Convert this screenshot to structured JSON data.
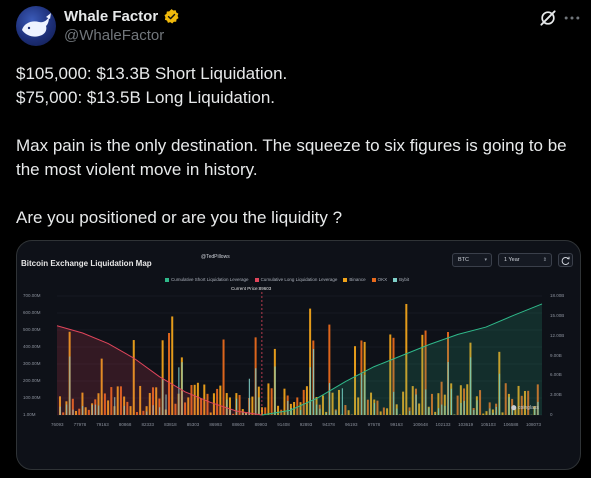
{
  "post": {
    "display_name": "Whale Factor",
    "handle": "@WhaleFactor",
    "lines": [
      "$105,000: $13.3B Short Liquidation.",
      "$75,000: $13.5B Long Liquidation.",
      "",
      "Max pain is the only destination. The squeeze to six figures is going to be the most violent move in history.",
      "",
      "Are you positioned or are you the liquidity ?"
    ]
  },
  "chart": {
    "title": "Bitcoin Exchange Liquidation Map",
    "watermark": "@TedPillows",
    "asset_select": "BTC",
    "range_select": "1 Year",
    "legend": [
      {
        "label": "Cumulative Short Liquidation Leverage",
        "color": "#2fb98a"
      },
      {
        "label": "Cumulative Long Liquidation Leverage",
        "color": "#e0455b"
      },
      {
        "label": "Binance",
        "color": "#f0a31a"
      },
      {
        "label": "OKX",
        "color": "#e86a1c"
      },
      {
        "label": "Bybit",
        "color": "#7fd0c9"
      }
    ],
    "current_price": "Current Price:89603",
    "brand": "coinglass"
  },
  "chart_data": {
    "type": "bar",
    "y_left_ticks": [
      "700.00M",
      "600.00M",
      "500.00M",
      "400.00M",
      "300.00M",
      "200.00M",
      "100.00M",
      "1.00M"
    ],
    "y_right_ticks": [
      "18.00B",
      "15.00B",
      "12.00B",
      "9.00B",
      "6.00B",
      "3.00B",
      "0"
    ],
    "x_ticks": [
      "76093",
      "77978",
      "79163",
      "80868",
      "82333",
      "83818",
      "85303",
      "86993",
      "88603",
      "89903",
      "91408",
      "92893",
      "94378",
      "96193",
      "97678",
      "99163",
      "100648",
      "102133",
      "103619",
      "105103",
      "106588",
      "108073"
    ],
    "current_price": 89603,
    "cumulative_long_liquidation_B": [
      13.5,
      12.4,
      10.8,
      8.6,
      5.8,
      3.5,
      1.9,
      0.6,
      0
    ],
    "cumulative_short_liquidation_B": [
      0,
      0.7,
      2.6,
      5.1,
      7.3,
      9.0,
      10.7,
      12.2,
      13.3,
      15.1,
      16.8
    ],
    "ylim_left": [
      0,
      700
    ],
    "ylim_right": [
      0,
      18
    ]
  }
}
